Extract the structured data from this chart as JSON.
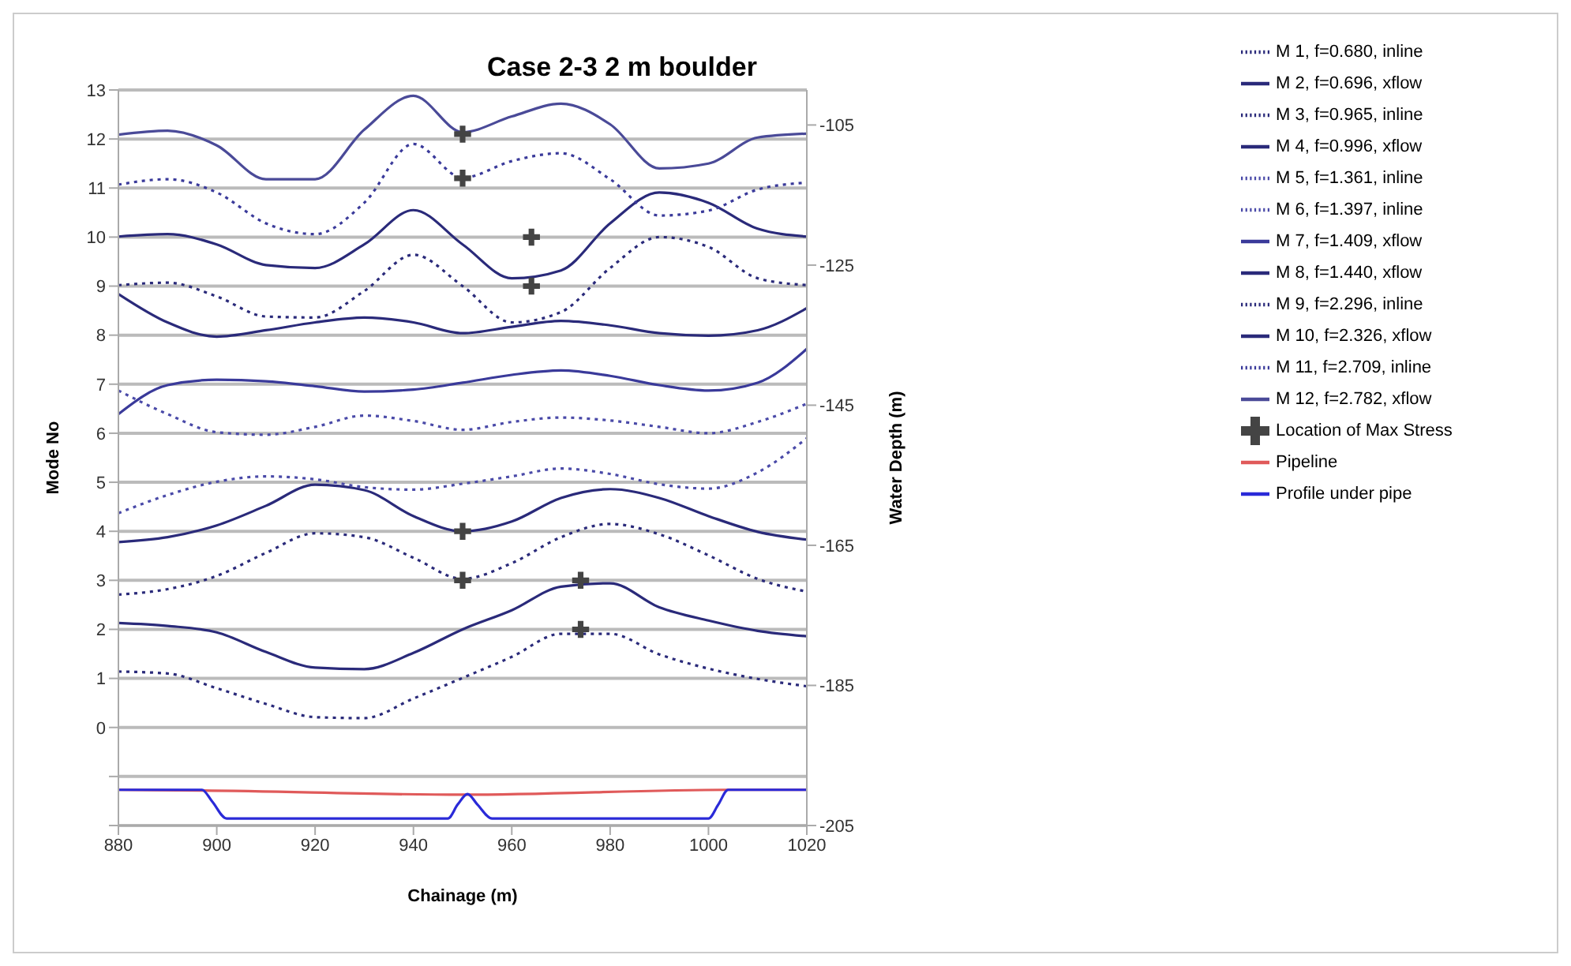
{
  "chart_data": {
    "type": "line",
    "title": "Case 2-3 2 m boulder",
    "xlabel": "Chainage (m)",
    "ylabel": "Mode No",
    "y2label": "Water Depth (m)",
    "xlim": [
      880,
      1020
    ],
    "xticks": [
      880,
      900,
      920,
      940,
      960,
      980,
      1000,
      1020
    ],
    "ylim": [
      -2,
      13
    ],
    "yticks": [
      {
        "value": -2,
        "label": null
      },
      {
        "value": -1,
        "label": null
      },
      0,
      1,
      2,
      3,
      4,
      5,
      6,
      7,
      8,
      9,
      10,
      11,
      12,
      13
    ],
    "y2lim": [
      -205,
      -100
    ],
    "y2ticks": [
      -205,
      -185,
      -165,
      -145,
      -125,
      -105
    ],
    "grid": "y",
    "legend": "right",
    "marker": "none",
    "line_style": "solid",
    "x": [
      880,
      890,
      900,
      910,
      920,
      930,
      940,
      950,
      960,
      970,
      980,
      990,
      1000,
      1010,
      1020
    ],
    "series": [
      {
        "name": "M 1, f=0.680, inline",
        "color": "#2a2a7a",
        "line_style": "dotted",
        "values": [
          1.14,
          1.1,
          0.8,
          0.48,
          0.21,
          0.19,
          0.59,
          1.01,
          1.44,
          1.91,
          1.91,
          1.49,
          1.2,
          0.99,
          0.84
        ]
      },
      {
        "name": "M 2, f=0.696, xflow",
        "color": "#2a2a7a",
        "values": [
          2.13,
          2.07,
          1.94,
          1.54,
          1.22,
          1.19,
          1.52,
          2.0,
          2.39,
          2.87,
          2.94,
          2.45,
          2.18,
          1.97,
          1.86
        ]
      },
      {
        "name": "M 3, f=0.965, inline",
        "color": "#2a2a7a",
        "line_style": "dotted",
        "values": [
          2.71,
          2.82,
          3.09,
          3.56,
          3.96,
          3.88,
          3.46,
          3.03,
          3.35,
          3.88,
          4.15,
          3.94,
          3.51,
          3.03,
          2.77
        ]
      },
      {
        "name": "M 4, f=0.996, xflow",
        "color": "#2a2a7a",
        "values": [
          3.78,
          3.88,
          4.12,
          4.52,
          4.95,
          4.84,
          4.31,
          4.0,
          4.2,
          4.68,
          4.86,
          4.68,
          4.31,
          3.99,
          3.83
        ]
      },
      {
        "name": "M 5, f=1.361, inline",
        "color": "#4a4aa8",
        "line_style": "dotted",
        "values": [
          4.37,
          4.74,
          5.01,
          5.12,
          5.06,
          4.9,
          4.85,
          4.97,
          5.12,
          5.28,
          5.17,
          4.96,
          4.87,
          5.2,
          5.9
        ]
      },
      {
        "name": "M 6, f=1.397, inline",
        "color": "#4a4aa8",
        "line_style": "dotted",
        "values": [
          6.87,
          6.39,
          6.02,
          5.97,
          6.13,
          6.36,
          6.25,
          6.07,
          6.23,
          6.32,
          6.26,
          6.13,
          6.0,
          6.23,
          6.6
        ]
      },
      {
        "name": "M 7, f=1.409, xflow",
        "color": "#3a3a9a",
        "values": [
          6.39,
          6.98,
          7.09,
          7.06,
          6.96,
          6.85,
          6.89,
          7.03,
          7.19,
          7.28,
          7.17,
          6.98,
          6.87,
          7.03,
          7.72
        ]
      },
      {
        "name": "M 8, f=1.440, xflow",
        "color": "#2a2a7a",
        "values": [
          8.84,
          8.26,
          7.97,
          8.1,
          8.26,
          8.36,
          8.26,
          8.04,
          8.17,
          8.29,
          8.2,
          8.04,
          7.99,
          8.1,
          8.55
        ]
      },
      {
        "name": "M 9, f=2.296, inline",
        "color": "#2a2a7a",
        "line_style": "dotted",
        "values": [
          9.02,
          9.07,
          8.79,
          8.38,
          8.36,
          8.9,
          9.64,
          9.0,
          8.26,
          8.47,
          9.37,
          10.0,
          9.8,
          9.16,
          9.02
        ]
      },
      {
        "name": "M 10, f=2.326, xflow",
        "color": "#2a2a7a",
        "values": [
          10.01,
          10.06,
          9.85,
          9.43,
          9.37,
          9.85,
          10.55,
          9.85,
          9.16,
          9.32,
          10.28,
          10.91,
          10.7,
          10.17,
          10.01
        ]
      },
      {
        "name": "M 11, f=2.709, inline",
        "color": "#3a3a9a",
        "line_style": "dotted",
        "values": [
          11.07,
          11.18,
          10.91,
          10.28,
          10.06,
          10.7,
          11.9,
          11.21,
          11.55,
          11.71,
          11.18,
          10.44,
          10.54,
          10.97,
          11.11
        ]
      },
      {
        "name": "M 12, f=2.782, xflow",
        "color": "#4a4a98",
        "values": [
          12.09,
          12.17,
          11.87,
          11.18,
          11.18,
          12.19,
          12.88,
          12.14,
          12.46,
          12.72,
          12.3,
          11.4,
          11.5,
          12.03,
          12.11
        ]
      },
      {
        "name": "Location of Max Stress",
        "type": "scatter",
        "marker": "cross",
        "color": "#444444",
        "x": [
          950,
          950,
          964,
          964,
          950,
          950,
          974,
          974
        ],
        "values": [
          12.1,
          11.2,
          10,
          9,
          4,
          3,
          3,
          2
        ]
      },
      {
        "name": "Pipeline",
        "color": "#e05a5a",
        "axis": "y2",
        "x": [
          880,
          897,
          950,
          1004,
          1020
        ],
        "values": [
          -199.9,
          -200,
          -200.6,
          -199.9,
          -199.9
        ]
      },
      {
        "name": "Profile under pipe",
        "color": "#2a2ad8",
        "axis": "y2",
        "x": [
          880,
          897,
          899,
          902,
          947,
          949,
          951,
          953,
          956,
          1000,
          1002,
          1004,
          1020
        ],
        "values": [
          -199.9,
          -199.9,
          -201.5,
          -204,
          -204,
          -202,
          -200.5,
          -202,
          -204,
          -204,
          -202,
          -199.9,
          -199.9
        ]
      }
    ]
  }
}
